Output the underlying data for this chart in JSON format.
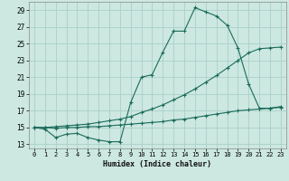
{
  "xlabel": "Humidex (Indice chaleur)",
  "bg_color": "#cce8e0",
  "grid_color": "#aacfc8",
  "line_color": "#1a6b5a",
  "xlim": [
    -0.5,
    23.5
  ],
  "ylim": [
    12.5,
    30.0
  ],
  "xticks": [
    0,
    1,
    2,
    3,
    4,
    5,
    6,
    7,
    8,
    9,
    10,
    11,
    12,
    13,
    14,
    15,
    16,
    17,
    18,
    19,
    20,
    21,
    22,
    23
  ],
  "yticks": [
    13,
    15,
    17,
    19,
    21,
    23,
    25,
    27,
    29
  ],
  "series": [
    {
      "x": [
        0,
        1,
        2,
        3,
        4,
        5,
        6,
        7,
        8,
        9,
        10,
        11,
        12,
        13,
        14,
        15,
        16,
        17,
        18,
        19,
        20,
        21,
        22,
        23
      ],
      "y": [
        15.0,
        14.8,
        13.8,
        14.2,
        14.3,
        13.8,
        13.5,
        13.3,
        13.3,
        18.0,
        21.0,
        21.3,
        24.0,
        26.5,
        26.5,
        29.3,
        28.8,
        28.3,
        27.2,
        24.5,
        20.2,
        17.3,
        17.3,
        17.5
      ]
    },
    {
      "x": [
        0,
        1,
        2,
        3,
        4,
        5,
        6,
        7,
        8,
        9,
        10,
        11,
        12,
        13,
        14,
        15,
        16,
        17,
        18,
        19,
        20,
        21,
        22,
        23
      ],
      "y": [
        15.0,
        15.0,
        15.1,
        15.2,
        15.3,
        15.4,
        15.6,
        15.8,
        16.0,
        16.3,
        16.8,
        17.2,
        17.7,
        18.3,
        18.9,
        19.6,
        20.4,
        21.2,
        22.1,
        23.0,
        23.9,
        24.4,
        24.5,
        24.6
      ]
    },
    {
      "x": [
        0,
        1,
        2,
        3,
        4,
        5,
        6,
        7,
        8,
        9,
        10,
        11,
        12,
        13,
        14,
        15,
        16,
        17,
        18,
        19,
        20,
        21,
        22,
        23
      ],
      "y": [
        15.0,
        15.0,
        14.9,
        15.0,
        15.0,
        15.1,
        15.1,
        15.2,
        15.3,
        15.4,
        15.5,
        15.6,
        15.7,
        15.9,
        16.0,
        16.2,
        16.4,
        16.6,
        16.8,
        17.0,
        17.1,
        17.2,
        17.3,
        17.4
      ]
    }
  ]
}
